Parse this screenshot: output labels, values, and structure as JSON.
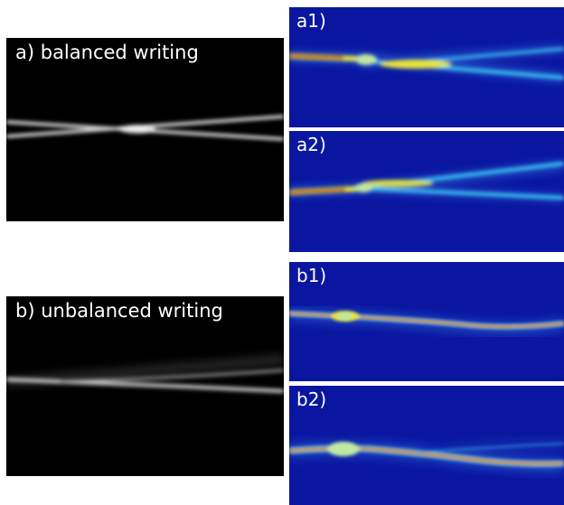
{
  "figure": {
    "panel_a": {
      "label": "a) balanced writing"
    },
    "panel_b": {
      "label": "b) unbalanced writing"
    },
    "panel_a1": {
      "label": "a1)"
    },
    "panel_a2": {
      "label": "a2)"
    },
    "panel_b1": {
      "label": "b1)"
    },
    "panel_b2": {
      "label": "b2)"
    }
  },
  "colors": {
    "grayscale_background": "#000000",
    "grayscale_beam": "#e8e8e8",
    "heatmap_background": "#0a16a0",
    "heatmap_cyan": "#39c6f0",
    "heatmap_yellow": "#e6e33a",
    "heatmap_red": "#c01814"
  }
}
